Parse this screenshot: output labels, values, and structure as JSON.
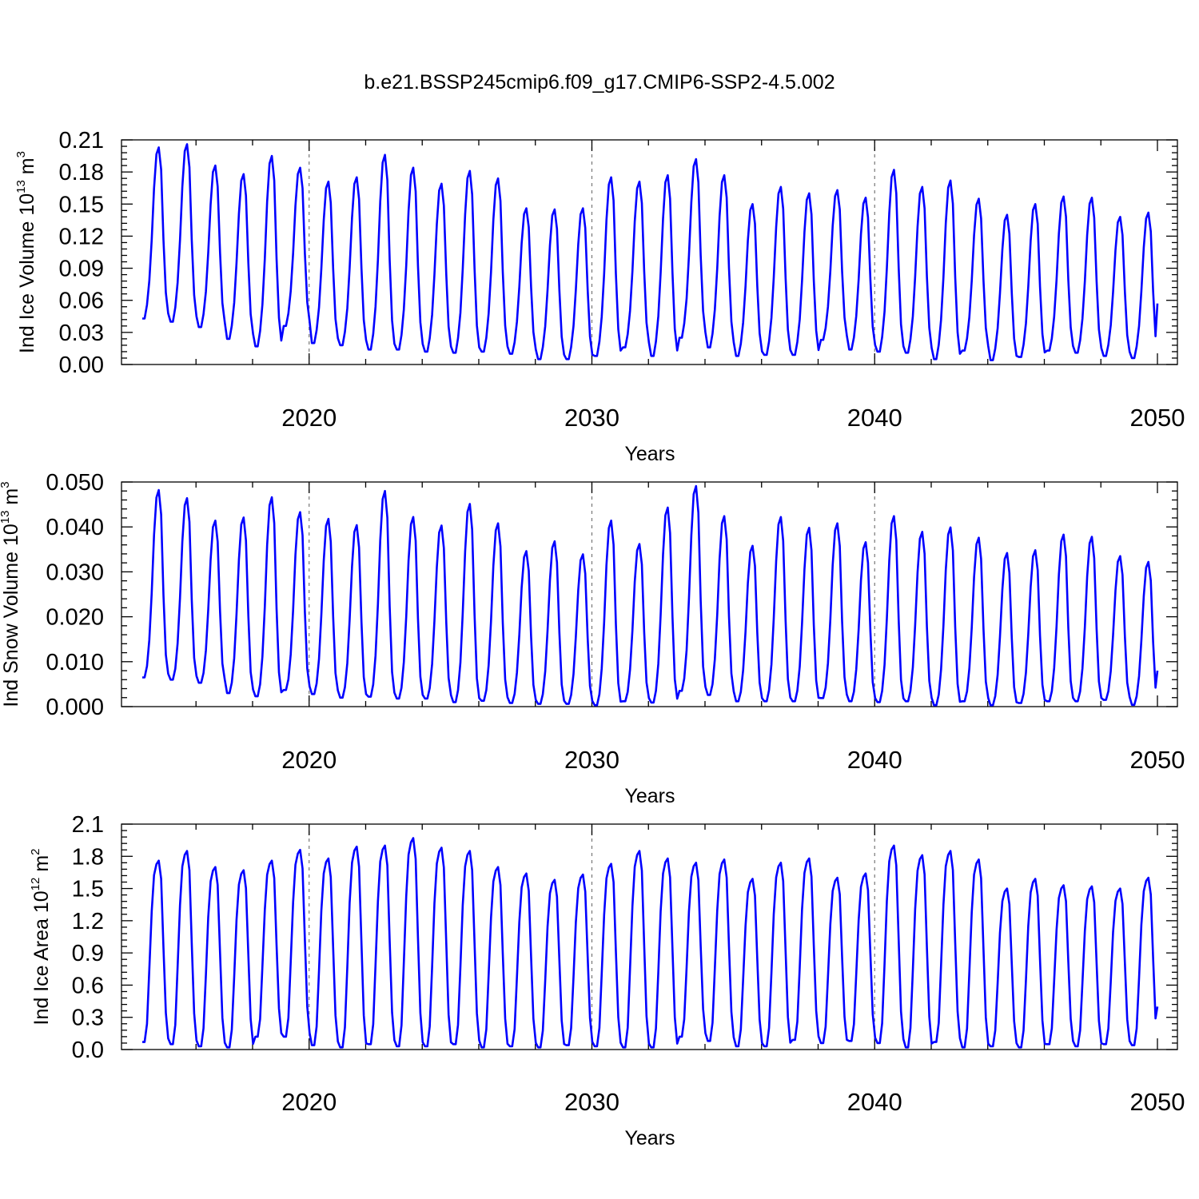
{
  "title": "b.e21.BSSP245cmip6.f09_g17.CMIP6-SSP2-4.5.002",
  "colors": {
    "series": "#0000ff",
    "axis": "#000000",
    "grid": "#777777"
  },
  "chart_data": [
    {
      "id": "ice-volume",
      "type": "line",
      "ylabel": "Ind Ice Volume 10",
      "ylabel_exp": "13",
      "ylabel_unit": " m",
      "ylabel_unit_exp": "3",
      "xlabel": "Years",
      "ylim": [
        0,
        0.21
      ],
      "yticks": [
        0.0,
        0.03,
        0.06,
        0.09,
        0.12,
        0.15,
        0.18,
        0.21
      ],
      "ytick_labels": [
        "0.00",
        "0.03",
        "0.06",
        "0.09",
        "0.12",
        "0.15",
        "0.18",
        "0.21"
      ],
      "xlim": [
        2014.1,
        2050.0
      ],
      "xticks": [
        2020,
        2030,
        2040,
        2050
      ],
      "xtick_labels": [
        "2020",
        "2030",
        "2040",
        "2050"
      ],
      "vertical_grid": [
        2020,
        2030,
        2040
      ],
      "series": [
        {
          "start_year": 2014.1,
          "step_years": 0.08333,
          "annual_cycle": [
            0.0,
            0.0,
            0.08,
            0.22,
            0.46,
            0.76,
            0.96,
            1.0,
            0.87,
            0.46,
            0.15,
            0.03
          ],
          "annual_min": [
            0.043,
            0.04,
            0.035,
            0.024,
            0.017,
            0.036,
            0.02,
            0.018,
            0.014,
            0.014,
            0.012,
            0.011,
            0.012,
            0.01,
            0.005,
            0.005,
            0.008,
            0.016,
            0.008,
            0.025,
            0.016,
            0.008,
            0.009,
            0.009,
            0.023,
            0.014,
            0.012,
            0.011,
            0.005,
            0.013,
            0.004,
            0.007,
            0.013,
            0.011,
            0.008,
            0.006,
            0.006
          ],
          "annual_max": [
            0.203,
            0.206,
            0.186,
            0.178,
            0.195,
            0.184,
            0.171,
            0.175,
            0.196,
            0.184,
            0.169,
            0.181,
            0.174,
            0.146,
            0.145,
            0.146,
            0.175,
            0.171,
            0.177,
            0.192,
            0.177,
            0.15,
            0.166,
            0.16,
            0.163,
            0.156,
            0.182,
            0.166,
            0.172,
            0.155,
            0.14,
            0.15,
            0.157,
            0.156,
            0.138,
            0.142,
            0.142
          ],
          "end_value": 0.057
        }
      ]
    },
    {
      "id": "snow-volume",
      "type": "line",
      "ylabel": "Ind Snow Volume 10",
      "ylabel_exp": "13",
      "ylabel_unit": " m",
      "ylabel_unit_exp": "3",
      "xlabel": "Years",
      "ylim": [
        0,
        0.05
      ],
      "yticks": [
        0.0,
        0.01,
        0.02,
        0.03,
        0.04,
        0.05
      ],
      "ytick_labels": [
        "0.000",
        "0.010",
        "0.020",
        "0.030",
        "0.040",
        "0.050"
      ],
      "xlim": [
        2014.1,
        2050.0
      ],
      "xticks": [
        2020,
        2030,
        2040,
        2050
      ],
      "xtick_labels": [
        "2020",
        "2030",
        "2040",
        "2050"
      ],
      "vertical_grid": [
        2020,
        2030,
        2040
      ],
      "series": [
        {
          "start_year": 2014.1,
          "step_years": 0.08333,
          "annual_cycle": [
            0.0,
            0.0,
            0.06,
            0.2,
            0.45,
            0.76,
            0.96,
            1.0,
            0.87,
            0.44,
            0.12,
            0.02
          ],
          "annual_min": [
            0.0065,
            0.006,
            0.0053,
            0.003,
            0.0023,
            0.0037,
            0.0028,
            0.002,
            0.0022,
            0.0018,
            0.0018,
            0.001,
            0.0013,
            0.0008,
            0.0006,
            0.0006,
            0.0003,
            0.0012,
            0.0009,
            0.0035,
            0.0026,
            0.0012,
            0.0012,
            0.0012,
            0.0019,
            0.0012,
            0.001,
            0.0012,
            0.0003,
            0.0012,
            0.0003,
            0.0008,
            0.0012,
            0.0012,
            0.0015,
            0.0004,
            0.0004
          ],
          "annual_max": [
            0.0482,
            0.0464,
            0.0414,
            0.0421,
            0.0466,
            0.0433,
            0.0418,
            0.0404,
            0.048,
            0.0422,
            0.0403,
            0.0451,
            0.0408,
            0.0346,
            0.0368,
            0.0339,
            0.0414,
            0.0362,
            0.0443,
            0.0491,
            0.0424,
            0.0358,
            0.0422,
            0.0398,
            0.0408,
            0.0366,
            0.0424,
            0.0389,
            0.0399,
            0.0376,
            0.0342,
            0.0348,
            0.0383,
            0.0378,
            0.0335,
            0.0322,
            0.0322
          ],
          "end_value": 0.008
        }
      ]
    },
    {
      "id": "ice-area",
      "type": "line",
      "ylabel": "Ind Ice Area 10",
      "ylabel_exp": "12",
      "ylabel_unit": " m",
      "ylabel_unit_exp": "2",
      "xlabel": "Years",
      "ylim": [
        0,
        2.1
      ],
      "yticks": [
        0.0,
        0.3,
        0.6,
        0.9,
        1.2,
        1.5,
        1.8,
        2.1
      ],
      "ytick_labels": [
        "0.0",
        "0.3",
        "0.6",
        "0.9",
        "1.2",
        "1.5",
        "1.8",
        "2.1"
      ],
      "xlim": [
        2014.1,
        2050.0
      ],
      "xticks": [
        2020,
        2030,
        2040,
        2050
      ],
      "xtick_labels": [
        "2020",
        "2030",
        "2040",
        "2050"
      ],
      "vertical_grid": [
        2020,
        2030,
        2040
      ],
      "series": [
        {
          "start_year": 2014.1,
          "step_years": 0.08333,
          "annual_cycle": [
            0.0,
            0.0,
            0.1,
            0.4,
            0.72,
            0.92,
            0.98,
            1.0,
            0.9,
            0.52,
            0.16,
            0.02
          ],
          "annual_min": [
            0.07,
            0.05,
            0.03,
            0.02,
            0.12,
            0.12,
            0.04,
            0.02,
            0.05,
            0.03,
            0.03,
            0.05,
            0.02,
            0.03,
            0.02,
            0.04,
            0.03,
            0.02,
            0.02,
            0.12,
            0.08,
            0.03,
            0.03,
            0.09,
            0.06,
            0.08,
            0.06,
            0.02,
            0.07,
            0.02,
            0.03,
            0.02,
            0.05,
            0.03,
            0.05,
            0.04,
            0.04
          ],
          "annual_max": [
            1.76,
            1.85,
            1.7,
            1.67,
            1.76,
            1.86,
            1.78,
            1.89,
            1.9,
            1.97,
            1.88,
            1.85,
            1.7,
            1.64,
            1.58,
            1.63,
            1.73,
            1.85,
            1.78,
            1.74,
            1.77,
            1.59,
            1.74,
            1.78,
            1.6,
            1.64,
            1.9,
            1.81,
            1.85,
            1.77,
            1.5,
            1.59,
            1.53,
            1.52,
            1.5,
            1.6,
            1.56
          ],
          "end_value": 0.4
        }
      ]
    }
  ]
}
